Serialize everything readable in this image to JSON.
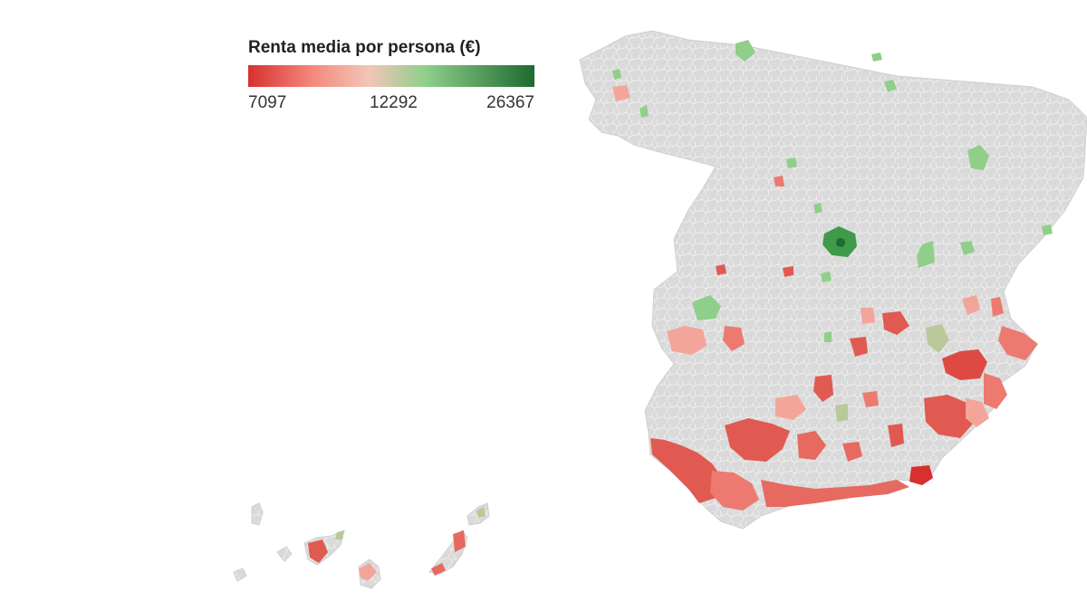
{
  "legend": {
    "title": "Renta media por persona (€)",
    "min_label": "7097",
    "mid_label": "12292",
    "max_label": "26367",
    "colors": {
      "low": "#d7302f",
      "mid_low": "#f4877a",
      "mid": "#f2c6b8",
      "mid_high": "#8fcf8a",
      "high": "#1e6a30"
    }
  },
  "map": {
    "base_color": "#dadada",
    "border_color": "#ffffff",
    "regions": [
      "spain-peninsula",
      "canary-islands"
    ]
  }
}
